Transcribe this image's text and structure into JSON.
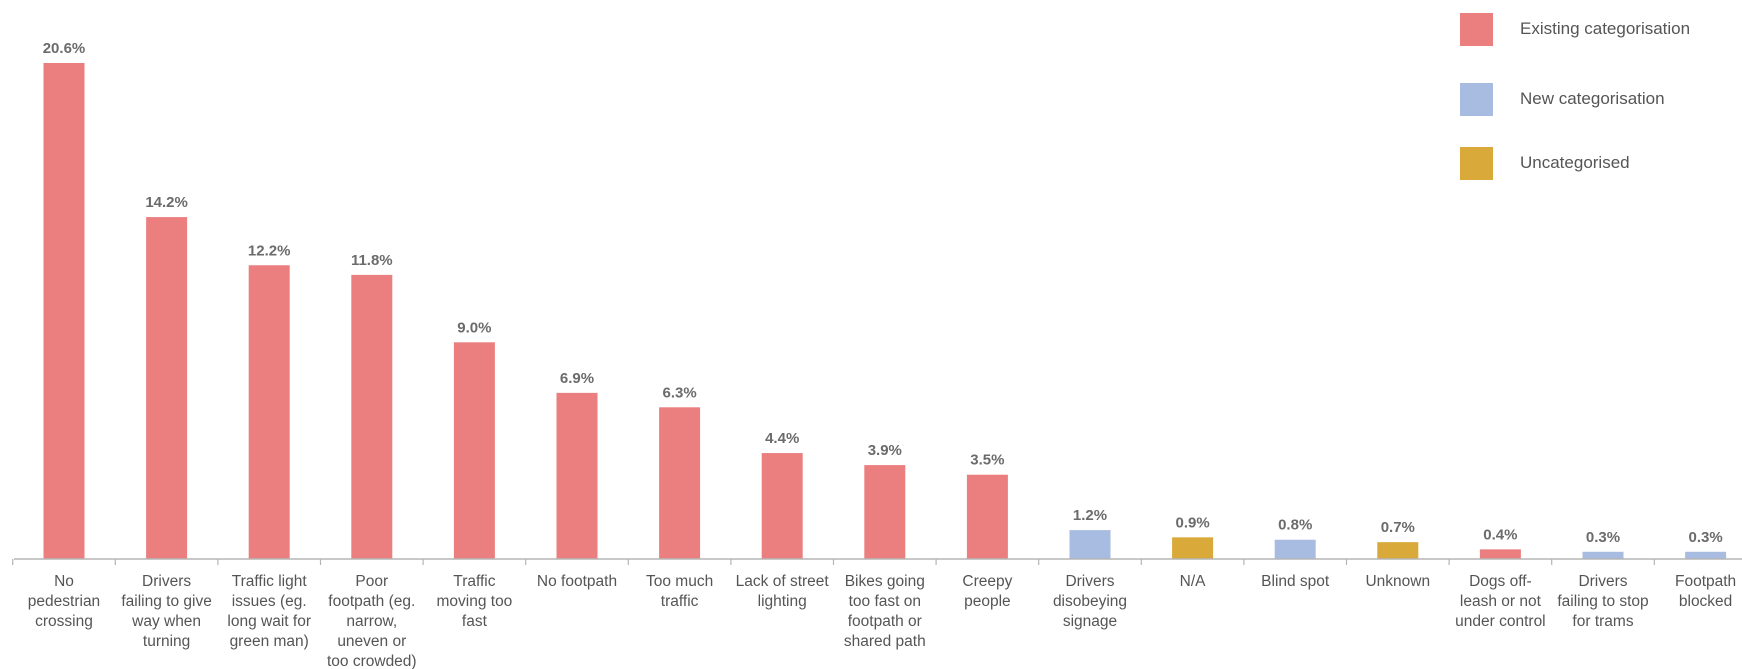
{
  "chart_data": {
    "type": "bar",
    "ylim": [
      0,
      22
    ],
    "grid": false,
    "legend_position": "top-right",
    "value_format_suffix": "%",
    "categories": [
      [
        "No",
        "pedestrian",
        "crossing"
      ],
      [
        "Drivers",
        "failing to give",
        "way when",
        "turning"
      ],
      [
        "Traffic light",
        "issues (eg.",
        "long wait for",
        "green man)"
      ],
      [
        "Poor",
        "footpath (eg.",
        "narrow,",
        "uneven or",
        "too crowded)"
      ],
      [
        "Traffic",
        "moving too",
        "fast"
      ],
      [
        "No footpath"
      ],
      [
        "Too much",
        "traffic"
      ],
      [
        "Lack of street",
        "lighting"
      ],
      [
        "Bikes going",
        "too fast on",
        "footpath or",
        "shared path"
      ],
      [
        "Creepy",
        "people"
      ],
      [
        "Drivers",
        "disobeying",
        "signage"
      ],
      [
        "N/A"
      ],
      [
        "Blind spot"
      ],
      [
        "Unknown"
      ],
      [
        "Dogs off-",
        "leash or not",
        "under control"
      ],
      [
        "Drivers",
        "failing to stop",
        "for trams"
      ],
      [
        "Footpath",
        "blocked"
      ]
    ],
    "values": [
      20.6,
      14.2,
      12.2,
      11.8,
      9.0,
      6.9,
      6.3,
      4.4,
      3.9,
      3.5,
      1.2,
      0.9,
      0.8,
      0.7,
      0.4,
      0.3,
      0.3
    ],
    "value_labels": [
      "20.6%",
      "14.2%",
      "12.2%",
      "11.8%",
      "9.0%",
      "6.9%",
      "6.3%",
      "4.4%",
      "3.9%",
      "3.5%",
      "1.2%",
      "0.9%",
      "0.8%",
      "0.7%",
      "0.4%",
      "0.3%",
      "0.3%"
    ],
    "groups": [
      "existing",
      "existing",
      "existing",
      "existing",
      "existing",
      "existing",
      "existing",
      "existing",
      "existing",
      "existing",
      "new",
      "uncategorised",
      "new",
      "uncategorised",
      "existing",
      "new",
      "new"
    ],
    "legend": [
      {
        "key": "existing",
        "label": "Existing categorisation",
        "color": "#eb7f7f"
      },
      {
        "key": "new",
        "label": "New categorisation",
        "color": "#a8bbe0"
      },
      {
        "key": "uncategorised",
        "label": "Uncategorised",
        "color": "#d9a93a"
      }
    ]
  }
}
